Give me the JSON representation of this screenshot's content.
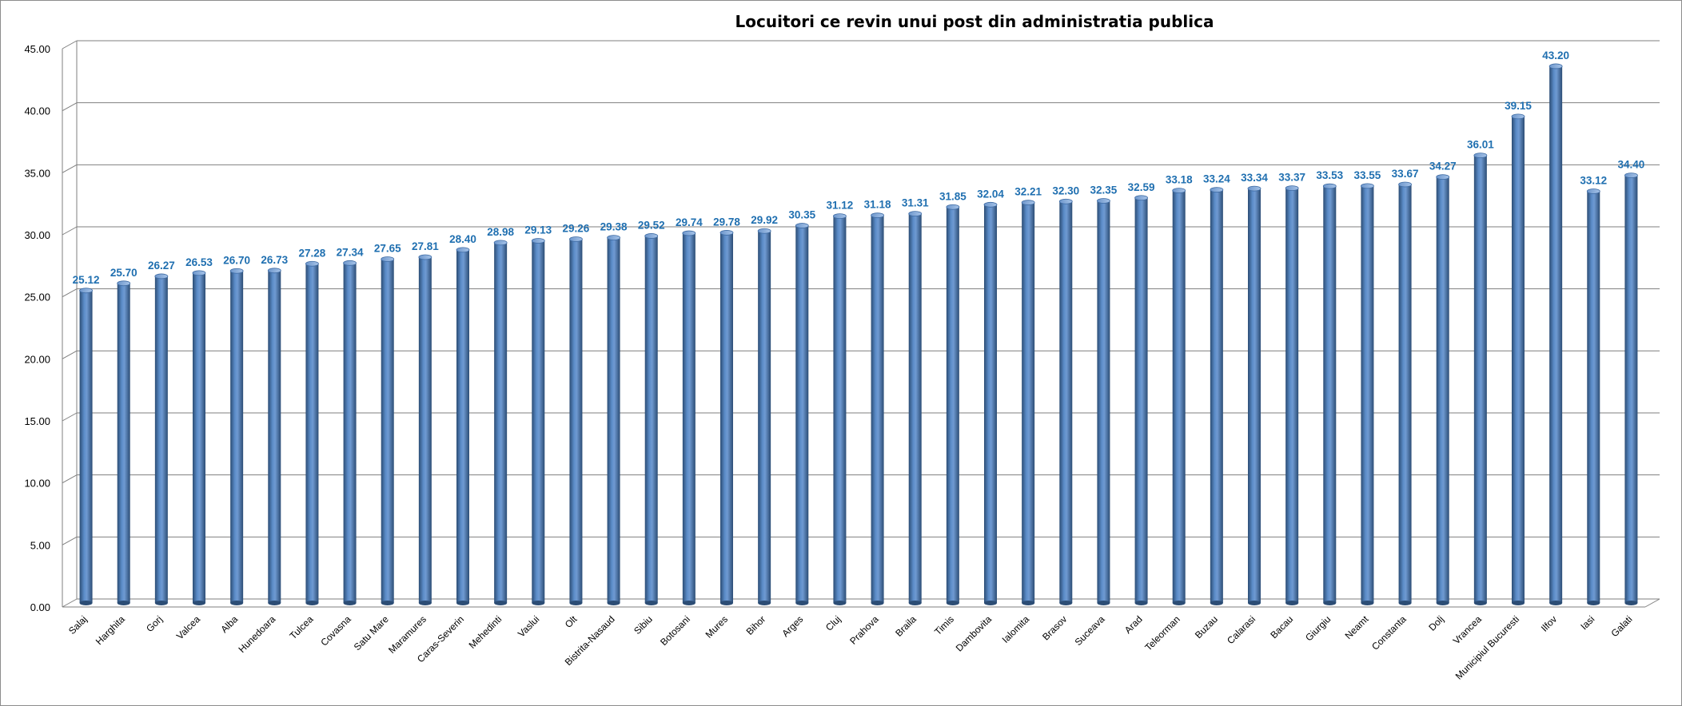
{
  "chart_data": {
    "type": "bar",
    "title": "Locuitori ce revin unui post din administratia publica",
    "xlabel": "",
    "ylabel": "",
    "ylim": [
      0,
      45
    ],
    "yticks": [
      "0.00",
      "5.00",
      "10.00",
      "15.00",
      "20.00",
      "25.00",
      "30.00",
      "35.00",
      "40.00",
      "45.00"
    ],
    "grid": true,
    "legend": "none",
    "categories": [
      "Salaj",
      "Harghita",
      "Gorj",
      "Valcea",
      "Alba",
      "Hunedoara",
      "Tulcea",
      "Covasna",
      "Satu Mare",
      "Maramures",
      "Caras-Severin",
      "Mehedinti",
      "Vaslui",
      "Olt",
      "Bistrita-Nasaud",
      "Sibiu",
      "Botosani",
      "Mures",
      "Bihor",
      "Arges",
      "Cluj",
      "Prahova",
      "Braila",
      "Timis",
      "Dambovita",
      "Ialomita",
      "Brasov",
      "Suceava",
      "Arad",
      "Teleorman",
      "Buzau",
      "Calarasi",
      "Bacau",
      "Giurgiu",
      "Neamt",
      "Constanta",
      "Dolj",
      "Vrancea",
      "Municipiul Bucuresti",
      "Ilfov",
      "Iasi",
      "Galati"
    ],
    "values": [
      25.12,
      25.7,
      26.27,
      26.53,
      26.7,
      26.73,
      27.28,
      27.34,
      27.65,
      27.81,
      28.4,
      28.98,
      29.13,
      29.26,
      29.38,
      29.52,
      29.74,
      29.78,
      29.92,
      30.35,
      31.12,
      31.18,
      31.31,
      31.85,
      32.04,
      32.21,
      32.3,
      32.35,
      32.59,
      33.18,
      33.24,
      33.34,
      33.37,
      33.53,
      33.55,
      33.67,
      34.27,
      36.01,
      39.15,
      43.2,
      33.12,
      34.4
    ],
    "labels": [
      "25.12",
      "25.70",
      "26.27",
      "26.53",
      "26.70",
      "26.73",
      "27.28",
      "27.34",
      "27.65",
      "27.81",
      "28.40",
      "28.98",
      "29.13",
      "29.26",
      "29.38",
      "29.52",
      "29.74",
      "29.78",
      "29.92",
      "30.35",
      "31.12",
      "31.18",
      "31.31",
      "31.85",
      "32.04",
      "32.21",
      "32.30",
      "32.35",
      "32.59",
      "33.18",
      "33.24",
      "33.34",
      "33.37",
      "33.53",
      "33.55",
      "33.67",
      "34.27",
      "36.01",
      "39.15",
      "43.20",
      "33.12",
      "34.40"
    ],
    "colors": {
      "bar": "#4f81bd",
      "bar_dark": "#2c4d75",
      "bar_light": "#8db3e2",
      "label": "#1f6fb0",
      "grid": "#7f7f7f"
    }
  }
}
